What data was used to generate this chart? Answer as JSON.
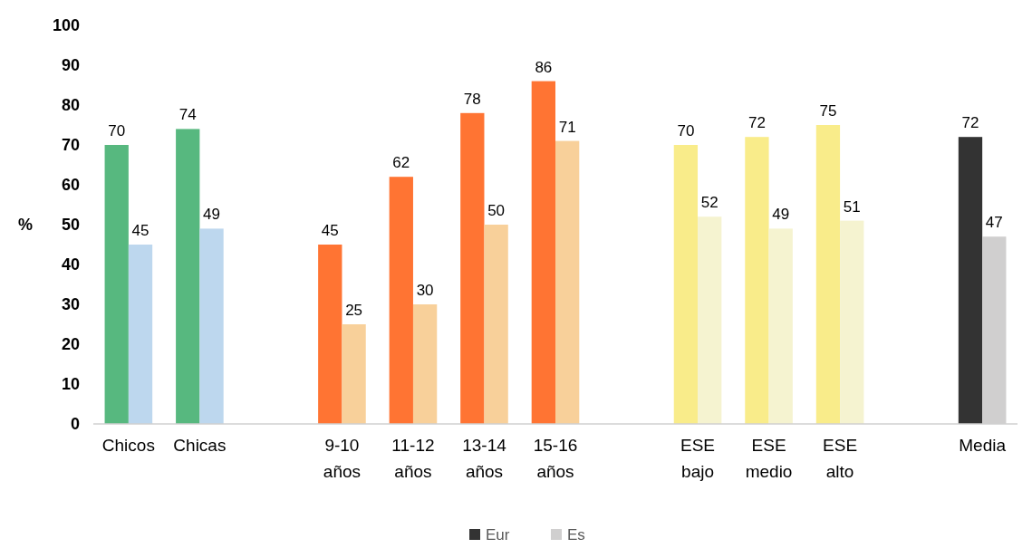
{
  "chart_data": {
    "type": "bar",
    "ylabel": "%",
    "categories": [
      "Chicos",
      "Chicas",
      null,
      "9-10 años",
      "11-12 años",
      "13-14 años",
      "15-16 años",
      null,
      "ESE bajo",
      "ESE medio",
      "ESE alto",
      null,
      "Media"
    ],
    "series": [
      {
        "name": "Eur",
        "color": "#333333",
        "colors": [
          "#57b87f",
          "#57b87f",
          null,
          "#ff7433",
          "#ff7433",
          "#ff7433",
          "#ff7433",
          null,
          "#f9ec8a",
          "#f9ec8a",
          "#f9ec8a",
          null,
          "#333333"
        ],
        "values": [
          70,
          74,
          null,
          45,
          62,
          78,
          86,
          null,
          70,
          72,
          75,
          null,
          72
        ]
      },
      {
        "name": "Es",
        "color": "#d0cfcf",
        "colors": [
          "#bdd7ee",
          "#bdd7ee",
          null,
          "#f8d09a",
          "#f8d09a",
          "#f8d09a",
          "#f8d09a",
          null,
          "#f5f3d0",
          "#f5f3d0",
          "#f5f3d0",
          null,
          "#d0cfcf"
        ],
        "values": [
          45,
          49,
          null,
          25,
          30,
          50,
          71,
          null,
          52,
          49,
          51,
          null,
          47
        ]
      }
    ],
    "ylim": [
      0,
      100
    ],
    "yticks": [
      0,
      10,
      20,
      30,
      40,
      50,
      60,
      70,
      80,
      90,
      100
    ],
    "data_labels": true,
    "grid": false,
    "legend": "bottom"
  }
}
